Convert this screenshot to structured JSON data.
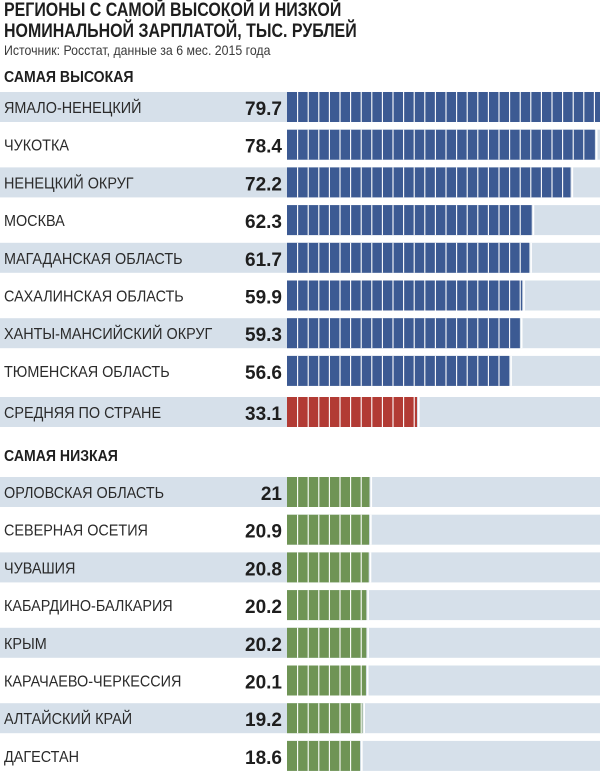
{
  "header": {
    "title_line1": "Регионы с самой высокой и низкой",
    "title_line2": "номинальной зарплатой, тыс. рублей",
    "source": "Источник: Росстат, данные за 6 мес. 2015 года"
  },
  "chart_data": {
    "type": "bar",
    "orientation": "horizontal",
    "unit": "тыс. рублей",
    "xlim": [
      0,
      79.7
    ],
    "colors": {
      "high": "#3c5a93",
      "average": "#b23b34",
      "low": "#6f9455",
      "track": "#d6e0ea"
    },
    "groups": [
      {
        "title": "САМАЯ ВЫСОКАЯ",
        "categories": [
          "ЯМАЛО-НЕНЕЦКИЙ",
          "ЧУКОТКА",
          "НЕНЕЦКИЙ ОКРУГ",
          "МОСКВА",
          "МАГАДАНСКАЯ ОБЛАСТЬ",
          "САХАЛИНСКАЯ ОБЛАСТЬ",
          "ХАНТЫ-МАНСИЙСКИЙ ОКРУГ",
          "ТЮМЕНСКАЯ ОБЛАСТЬ"
        ],
        "values": [
          79.7,
          78.4,
          72.2,
          62.3,
          61.7,
          59.9,
          59.3,
          56.6
        ],
        "labels": [
          "79.7",
          "78.4",
          "72.2",
          "62.3",
          "61.7",
          "59.9",
          "59.3",
          "56.6"
        ]
      },
      {
        "title": "",
        "categories": [
          "СРЕДНЯЯ ПО СТРАНЕ"
        ],
        "values": [
          33.1
        ],
        "labels": [
          "33.1"
        ]
      },
      {
        "title": "САМАЯ НИЗКАЯ",
        "categories": [
          "ОРЛОВСКАЯ ОБЛАСТЬ",
          "СЕВЕРНАЯ ОСЕТИЯ",
          "ЧУВАШИЯ",
          "КАБАРДИНО-БАЛКАРИЯ",
          "КРЫМ",
          "КАРАЧАЕВО-ЧЕРКЕССИЯ",
          "АЛТАЙСКИЙ КРАЙ",
          "ДАГЕСТАН"
        ],
        "values": [
          21,
          20.9,
          20.8,
          20.2,
          20.2,
          20.1,
          19.2,
          18.6
        ],
        "labels": [
          "21",
          "20.9",
          "20.8",
          "20.2",
          "20.2",
          "20.1",
          "19.2",
          "18.6"
        ]
      }
    ]
  }
}
